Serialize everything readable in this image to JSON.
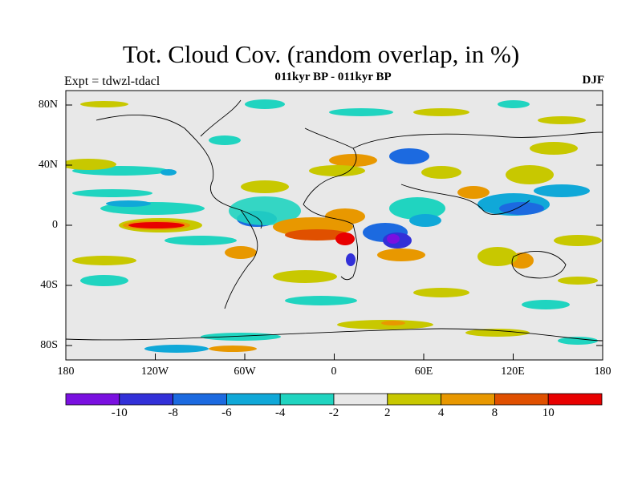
{
  "header": {
    "title": "Tot. Cloud Cov. (random overlap, in %)",
    "subtitle": "011kyr BP - 011kyr BP",
    "experiment": "Expt = tdwzl-tdacl",
    "season": "DJF"
  },
  "axes": {
    "lat_labels": [
      "80N",
      "40N",
      "0",
      "40S",
      "80S"
    ],
    "lon_labels": [
      "180",
      "120W",
      "60W",
      "0",
      "60E",
      "120E",
      "180"
    ]
  },
  "colorbar": {
    "colors": [
      "#7a10e0",
      "#3230d8",
      "#1c6ae0",
      "#10a8d8",
      "#20d4c0",
      "#e8e8e8",
      "#c8c800",
      "#e89800",
      "#e05000",
      "#e80000"
    ],
    "labels": [
      "-10",
      "-8",
      "-6",
      "-4",
      "-2",
      "2",
      "4",
      "8",
      "10"
    ]
  },
  "colors": {
    "background_field": "#e8e8e8",
    "coastline": "#000000"
  }
}
